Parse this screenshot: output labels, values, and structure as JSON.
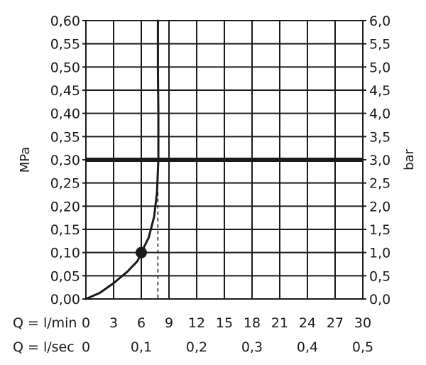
{
  "chart_data": {
    "type": "line",
    "left_axis": {
      "label": "MPa",
      "ylim": [
        0,
        0.6
      ],
      "ticks": [
        "0,00",
        "0,05",
        "0,10",
        "0,15",
        "0,20",
        "0,25",
        "0,30",
        "0,35",
        "0,40",
        "0,45",
        "0,50",
        "0,55",
        "0,60"
      ]
    },
    "right_axis": {
      "label": "bar",
      "ylim": [
        0,
        6
      ],
      "ticks": [
        "0,0",
        "0,5",
        "1,0",
        "1,5",
        "2,0",
        "2,5",
        "3,0",
        "3,5",
        "4,0",
        "4,5",
        "5,0",
        "5,5",
        "6,0"
      ]
    },
    "x_axis_lmin": {
      "label": "Q = l/min",
      "xlim": [
        0,
        30
      ],
      "ticks": [
        "0",
        "3",
        "6",
        "9",
        "12",
        "15",
        "18",
        "21",
        "24",
        "27",
        "30"
      ]
    },
    "x_axis_lsec": {
      "label": "Q = l/sec",
      "ticks": [
        {
          "value": 0,
          "label": "0"
        },
        {
          "value": 0.1,
          "label": "0,1"
        },
        {
          "value": 0.2,
          "label": "0,2"
        },
        {
          "value": 0.3,
          "label": "0,3"
        },
        {
          "value": 0.4,
          "label": "0,4"
        },
        {
          "value": 0.5,
          "label": "0,5"
        }
      ]
    },
    "grid": true,
    "series": [
      {
        "points": [
          {
            "x": 0,
            "y": 0.0
          },
          {
            "x": 1.5,
            "y": 0.013
          },
          {
            "x": 3,
            "y": 0.034
          },
          {
            "x": 4.5,
            "y": 0.059
          },
          {
            "x": 5.6,
            "y": 0.082
          },
          {
            "x": 6,
            "y": 0.1
          },
          {
            "x": 6.8,
            "y": 0.132
          },
          {
            "x": 7.4,
            "y": 0.178
          },
          {
            "x": 7.7,
            "y": 0.23
          },
          {
            "x": 7.85,
            "y": 0.3
          },
          {
            "x": 7.85,
            "y": 0.4
          },
          {
            "x": 7.8,
            "y": 0.5
          },
          {
            "x": 7.8,
            "y": 0.6
          }
        ],
        "color": "#1a1a1a"
      }
    ],
    "reference_line": {
      "y": 0.3,
      "color": "#1a1a1a"
    },
    "marker": {
      "x": 6,
      "y": 0.1
    },
    "dashed_drop": {
      "x": 7.8,
      "from_y": 0.23,
      "to_y": 0.0
    }
  }
}
